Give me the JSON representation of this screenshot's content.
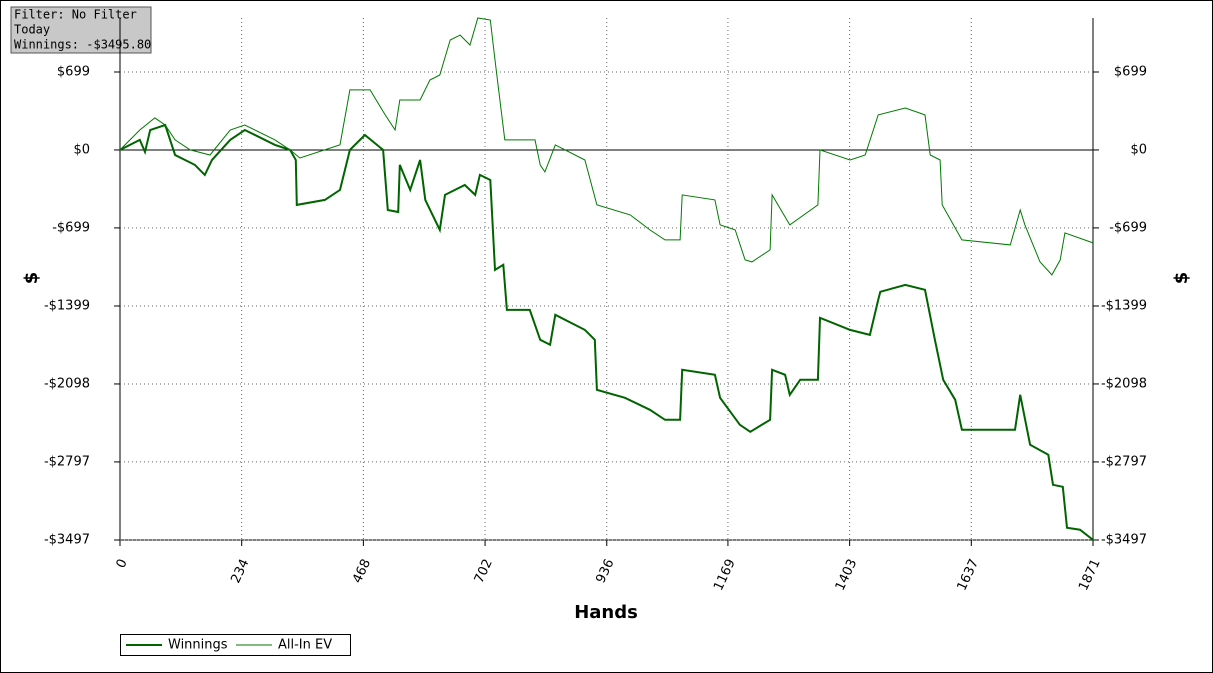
{
  "chart_data": {
    "type": "line",
    "info": [
      "Filter: No Filter",
      "Today",
      "Winnings: -$3495.80"
    ],
    "xlabel": "Hands",
    "ylabel": "$",
    "xlim": [
      0,
      1871
    ],
    "xticks": [
      0,
      234,
      468,
      702,
      936,
      1169,
      1403,
      1637,
      1871
    ],
    "ylim": [
      -3497,
      1183
    ],
    "yticks": [
      {
        "value": 699,
        "label": "$699"
      },
      {
        "value": 0,
        "label": "$0"
      },
      {
        "value": -699,
        "label": "-$699"
      },
      {
        "value": -1399,
        "label": "-$1399"
      },
      {
        "value": -2098,
        "label": "-$2098"
      },
      {
        "value": -2797,
        "label": "-$2797"
      },
      {
        "value": -3497,
        "label": "-$3497"
      }
    ],
    "grid": true,
    "legend": "bottom-left",
    "series": [
      {
        "name": "Winnings",
        "color": "#006400",
        "x": [
          0,
          38,
          48,
          58,
          87,
          106,
          144,
          163,
          177,
          212,
          240,
          298,
          327,
          338,
          340,
          394,
          423,
          442,
          471,
          506,
          515,
          535,
          538,
          558,
          577,
          587,
          615,
          625,
          663,
          683,
          692,
          712,
          721,
          737,
          744,
          788,
          808,
          827,
          837,
          894,
          913,
          917,
          971,
          1019,
          1048,
          1077,
          1081,
          1144,
          1154,
          1192,
          1212,
          1250,
          1254,
          1279,
          1288,
          1308,
          1342,
          1346,
          1404,
          1442,
          1458,
          1462,
          1510,
          1548,
          1567,
          1583,
          1606,
          1619,
          1721,
          1731,
          1750,
          1785,
          1794,
          1813,
          1821,
          1846,
          1871
        ],
        "values": [
          0,
          90,
          -18,
          179,
          224,
          -45,
          -134,
          -224,
          -90,
          90,
          179,
          45,
          0,
          -90,
          -493,
          -448,
          -358,
          0,
          134,
          0,
          -538,
          -556,
          -134,
          -358,
          -90,
          -448,
          -717,
          -403,
          -314,
          -403,
          -224,
          -269,
          -1075,
          -1030,
          -1434,
          -1434,
          -1702,
          -1747,
          -1478,
          -1613,
          -1702,
          -2150,
          -2222,
          -2330,
          -2419,
          -2419,
          -1971,
          -2016,
          -2222,
          -2464,
          -2527,
          -2419,
          -1971,
          -2016,
          -2195,
          -2061,
          -2061,
          -1505,
          -1613,
          -1658,
          -1344,
          -1272,
          -1210,
          -1254,
          -1702,
          -2061,
          -2240,
          -2509,
          -2509,
          -2195,
          -2643,
          -2733,
          -3002,
          -3020,
          -3387,
          -3405,
          -3496
        ]
      },
      {
        "name": "All-In EV",
        "color": "#007a00",
        "x": [
          0,
          38,
          67,
          87,
          106,
          135,
          173,
          212,
          240,
          298,
          327,
          346,
          423,
          442,
          481,
          510,
          529,
          538,
          577,
          596,
          615,
          635,
          654,
          673,
          688,
          712,
          721,
          740,
          798,
          808,
          817,
          837,
          894,
          917,
          981,
          1019,
          1048,
          1077,
          1081,
          1144,
          1154,
          1183,
          1202,
          1215,
          1250,
          1254,
          1288,
          1342,
          1346,
          1404,
          1433,
          1458,
          1510,
          1548,
          1558,
          1577,
          1581,
          1619,
          1712,
          1731,
          1740,
          1769,
          1792,
          1808,
          1817,
          1871
        ],
        "values": [
          0,
          179,
          287,
          224,
          90,
          0,
          -45,
          179,
          224,
          90,
          0,
          -72,
          45,
          538,
          538,
          314,
          179,
          448,
          448,
          627,
          672,
          986,
          1030,
          941,
          1183,
          1165,
          806,
          90,
          90,
          -134,
          -197,
          45,
          -90,
          -493,
          -582,
          -717,
          -806,
          -806,
          -403,
          -448,
          -672,
          -717,
          -986,
          -1004,
          -896,
          -403,
          -672,
          -493,
          0,
          -90,
          -45,
          314,
          376,
          314,
          -45,
          -90,
          -493,
          -806,
          -851,
          -538,
          -672,
          -1004,
          -1120,
          -986,
          -744,
          -833
        ]
      }
    ]
  }
}
